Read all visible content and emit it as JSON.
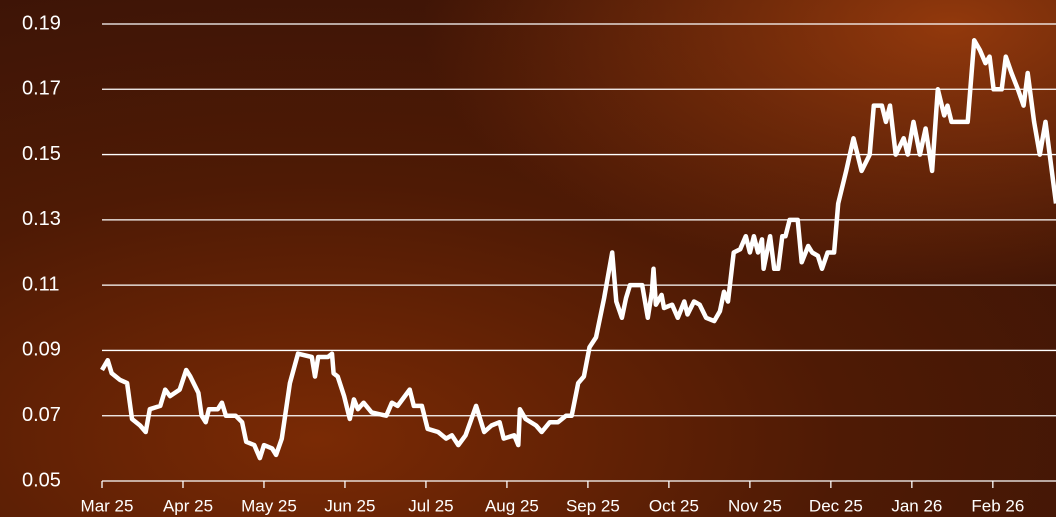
{
  "chart_data": {
    "type": "line",
    "color": "#ffffff",
    "x": [
      0,
      0.07,
      0.12,
      0.22,
      0.31,
      0.37,
      0.47,
      0.54,
      0.59,
      0.72,
      0.78,
      0.84,
      0.96,
      1.04,
      1.09,
      1.19,
      1.23,
      1.28,
      1.32,
      1.43,
      1.48,
      1.53,
      1.65,
      1.73,
      1.78,
      1.88,
      1.95,
      2.0,
      2.1,
      2.15,
      2.22,
      2.32,
      2.42,
      2.59,
      2.63,
      2.67,
      2.79,
      2.84,
      2.86,
      2.91,
      2.99,
      3.06,
      3.11,
      3.16,
      3.23,
      3.33,
      3.51,
      3.58,
      3.65,
      3.8,
      3.85,
      3.95,
      4.02,
      4.15,
      4.25,
      4.32,
      4.4,
      4.49,
      4.62,
      4.72,
      4.81,
      4.91,
      4.96,
      5.09,
      5.14,
      5.16,
      5.23,
      5.36,
      5.43,
      5.53,
      5.63,
      5.73,
      5.8,
      5.88,
      5.95,
      6.02,
      6.1,
      6.2,
      6.3,
      6.35,
      6.42,
      6.47,
      6.52,
      6.67,
      6.74,
      6.79,
      6.81,
      6.84,
      6.91,
      6.94,
      7.04,
      7.11,
      7.19,
      7.23,
      7.31,
      7.38,
      7.46,
      7.56,
      7.63,
      7.68,
      7.73,
      7.8,
      7.88,
      7.95,
      8.0,
      8.05,
      8.1,
      8.15,
      8.17,
      8.25,
      8.3,
      8.35,
      8.4,
      8.44,
      8.49,
      8.59,
      8.64,
      8.72,
      8.77,
      8.84,
      8.89,
      8.96,
      9.04,
      9.09,
      9.19,
      9.28,
      9.38,
      9.48,
      9.53,
      9.63,
      9.68,
      9.73,
      9.8,
      9.9,
      9.95,
      10.02,
      10.1,
      10.17,
      10.25,
      10.32,
      10.4,
      10.44,
      10.49,
      10.69,
      10.77,
      10.84,
      10.91,
      10.96,
      11.01,
      11.11,
      11.16,
      11.23,
      11.31,
      11.38,
      11.43,
      11.51,
      11.58,
      11.65,
      11.78
    ],
    "values": [
      0.084,
      0.087,
      0.083,
      0.081,
      0.08,
      0.069,
      0.067,
      0.065,
      0.072,
      0.073,
      0.078,
      0.076,
      0.078,
      0.084,
      0.082,
      0.077,
      0.07,
      0.068,
      0.072,
      0.072,
      0.074,
      0.07,
      0.07,
      0.068,
      0.062,
      0.061,
      0.057,
      0.061,
      0.06,
      0.058,
      0.063,
      0.08,
      0.089,
      0.088,
      0.082,
      0.088,
      0.088,
      0.089,
      0.083,
      0.082,
      0.076,
      0.069,
      0.075,
      0.072,
      0.074,
      0.071,
      0.07,
      0.074,
      0.073,
      0.078,
      0.073,
      0.073,
      0.066,
      0.065,
      0.063,
      0.064,
      0.061,
      0.064,
      0.073,
      0.065,
      0.067,
      0.068,
      0.063,
      0.064,
      0.061,
      0.072,
      0.069,
      0.067,
      0.065,
      0.068,
      0.068,
      0.07,
      0.07,
      0.08,
      0.082,
      0.091,
      0.094,
      0.106,
      0.12,
      0.105,
      0.1,
      0.106,
      0.11,
      0.11,
      0.1,
      0.108,
      0.115,
      0.104,
      0.107,
      0.103,
      0.104,
      0.1,
      0.105,
      0.101,
      0.105,
      0.104,
      0.1,
      0.099,
      0.102,
      0.108,
      0.105,
      0.12,
      0.121,
      0.125,
      0.12,
      0.125,
      0.12,
      0.124,
      0.115,
      0.125,
      0.115,
      0.115,
      0.125,
      0.125,
      0.13,
      0.13,
      0.117,
      0.122,
      0.12,
      0.119,
      0.115,
      0.12,
      0.12,
      0.135,
      0.145,
      0.155,
      0.145,
      0.15,
      0.165,
      0.165,
      0.16,
      0.165,
      0.15,
      0.155,
      0.15,
      0.16,
      0.15,
      0.158,
      0.145,
      0.17,
      0.162,
      0.165,
      0.16,
      0.16,
      0.185,
      0.182,
      0.178,
      0.18,
      0.17,
      0.17,
      0.18,
      0.175,
      0.17,
      0.165,
      0.175,
      0.16,
      0.15,
      0.16,
      0.135
    ],
    "xlim": [
      0,
      11.78
    ],
    "xticks": [
      {
        "value": 0,
        "label": "Mar 25"
      },
      {
        "value": 1,
        "label": "Apr 25"
      },
      {
        "value": 2,
        "label": "May 25"
      },
      {
        "value": 3,
        "label": "Jun 25"
      },
      {
        "value": 4,
        "label": "Jul 25"
      },
      {
        "value": 5,
        "label": "Aug 25"
      },
      {
        "value": 6,
        "label": "Sep 25"
      },
      {
        "value": 7,
        "label": "Oct 25"
      },
      {
        "value": 8,
        "label": "Nov 25"
      },
      {
        "value": 9,
        "label": "Dec 25"
      },
      {
        "value": 10,
        "label": "Jan 26"
      },
      {
        "value": 11,
        "label": "Feb 26"
      }
    ],
    "ylim": [
      0.05,
      0.19
    ],
    "yticks": [
      0.05,
      0.07,
      0.09,
      0.11,
      0.13,
      0.15,
      0.17,
      0.19
    ],
    "grid": true
  }
}
